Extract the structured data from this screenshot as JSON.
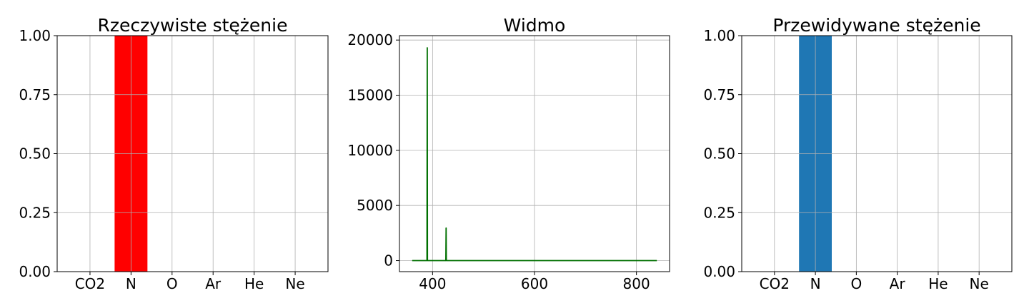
{
  "chart_data": [
    {
      "type": "bar",
      "title": "Rzeczywiste stężenie",
      "categories": [
        "CO2",
        "N",
        "O",
        "Ar",
        "He",
        "Ne"
      ],
      "values": [
        0,
        1.0,
        0,
        0,
        0,
        0
      ],
      "ylim": [
        0,
        1.0
      ],
      "yticks": [
        "0.00",
        "0.25",
        "0.50",
        "0.75",
        "1.00"
      ],
      "grid": true,
      "color": "#ff0000"
    },
    {
      "type": "line",
      "title": "Widmo",
      "xlim": [
        335,
        865
      ],
      "ylim": [
        -1000,
        20400
      ],
      "xticks": [
        "400",
        "600",
        "800"
      ],
      "yticks": [
        "0",
        "5000",
        "10000",
        "15000",
        "20000"
      ],
      "grid": true,
      "color": "#007000",
      "x": [
        360,
        388,
        389,
        389.5,
        390,
        391,
        425,
        426,
        426.5,
        427,
        428,
        840
      ],
      "y": [
        0,
        0,
        0,
        19300,
        0,
        0,
        0,
        0,
        2950,
        0,
        0,
        0
      ]
    },
    {
      "type": "bar",
      "title": "Przewidywane stężenie",
      "categories": [
        "CO2",
        "N",
        "O",
        "Ar",
        "He",
        "Ne"
      ],
      "values": [
        0,
        1.0,
        0,
        0,
        0,
        0
      ],
      "ylim": [
        0,
        1.0
      ],
      "yticks": [
        "0.00",
        "0.25",
        "0.50",
        "0.75",
        "1.00"
      ],
      "grid": true,
      "color": "#1f77b4"
    }
  ]
}
